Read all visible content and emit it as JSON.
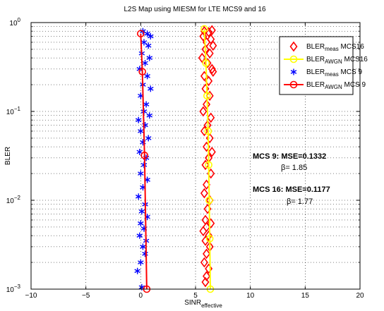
{
  "chart_data": {
    "type": "line",
    "title": "L2S Map using MIESM for LTE MCS9 and 16",
    "xlabel": {
      "main": "SINR",
      "sub": "effective"
    },
    "ylabel": "BLER",
    "xlim": [
      -10,
      20
    ],
    "ylim": [
      0.001,
      1
    ],
    "yscale": "log",
    "grid": true,
    "x_ticks": [
      "−10",
      "−5",
      "0",
      "5",
      "10",
      "15",
      "20"
    ],
    "y_ticks": [
      {
        "base": "10",
        "exp": "−3"
      },
      {
        "base": "10",
        "exp": "−2"
      },
      {
        "base": "10",
        "exp": "−1"
      },
      {
        "base": "10",
        "exp": "0"
      }
    ],
    "legend_position": "top-right",
    "series": [
      {
        "name_main": "BLER",
        "name_sub": "meas",
        "name_tail": " MCS16",
        "color": "#ff0000",
        "marker": "diamond",
        "line": false,
        "points": [
          [
            5.8,
            0.8
          ],
          [
            6.2,
            0.78
          ],
          [
            6.5,
            0.82
          ],
          [
            5.7,
            0.7
          ],
          [
            6.0,
            0.6
          ],
          [
            6.4,
            0.65
          ],
          [
            5.9,
            0.5
          ],
          [
            6.3,
            0.45
          ],
          [
            6.6,
            0.55
          ],
          [
            5.6,
            0.4
          ],
          [
            6.1,
            0.35
          ],
          [
            6.5,
            0.3
          ],
          [
            5.8,
            0.25
          ],
          [
            6.2,
            0.22
          ],
          [
            6.6,
            0.28
          ],
          [
            5.9,
            0.18
          ],
          [
            6.3,
            0.15
          ],
          [
            6.0,
            0.12
          ],
          [
            5.7,
            0.1
          ],
          [
            6.4,
            0.085
          ],
          [
            6.1,
            0.07
          ],
          [
            5.8,
            0.06
          ],
          [
            6.3,
            0.05
          ],
          [
            6.0,
            0.04
          ],
          [
            6.5,
            0.035
          ],
          [
            6.2,
            0.03
          ],
          [
            5.9,
            0.025
          ],
          [
            6.4,
            0.02
          ],
          [
            6.0,
            0.015
          ],
          [
            5.8,
            0.012
          ],
          [
            6.3,
            0.01
          ],
          [
            6.1,
            0.008
          ],
          [
            5.9,
            0.006
          ],
          [
            6.4,
            0.0055
          ],
          [
            6.0,
            0.005
          ],
          [
            5.7,
            0.0045
          ],
          [
            6.2,
            0.004
          ],
          [
            5.9,
            0.0035
          ],
          [
            6.3,
            0.003
          ],
          [
            6.0,
            0.0025
          ],
          [
            5.8,
            0.002
          ],
          [
            6.2,
            0.0017
          ],
          [
            6.0,
            0.0014
          ],
          [
            5.9,
            0.0012
          ]
        ]
      },
      {
        "name_main": "BLER",
        "name_sub": "AWGN",
        "name_tail": " MCS16",
        "color": "#ffff00",
        "marker": "circle",
        "line": true,
        "points": [
          [
            5.8,
            0.85
          ],
          [
            5.95,
            0.35
          ],
          [
            6.05,
            0.15
          ],
          [
            6.15,
            0.06
          ],
          [
            6.2,
            0.025
          ],
          [
            6.25,
            0.01
          ],
          [
            6.3,
            0.0037
          ],
          [
            6.35,
            0.001
          ]
        ]
      },
      {
        "name_main": "BLER",
        "name_sub": "meas",
        "name_tail": " MCS 9",
        "color": "#0000ff",
        "marker": "asterisk",
        "line": false,
        "points": [
          [
            0.2,
            0.8
          ],
          [
            0.6,
            0.75
          ],
          [
            0.9,
            0.7
          ],
          [
            0.3,
            0.6
          ],
          [
            0.7,
            0.55
          ],
          [
            0.1,
            0.45
          ],
          [
            0.8,
            0.4
          ],
          [
            0.4,
            0.35
          ],
          [
            -0.1,
            0.3
          ],
          [
            0.6,
            0.25
          ],
          [
            0.2,
            0.2
          ],
          [
            0.9,
            0.18
          ],
          [
            0.0,
            0.15
          ],
          [
            0.5,
            0.12
          ],
          [
            0.3,
            0.1
          ],
          [
            0.8,
            0.09
          ],
          [
            -0.2,
            0.08
          ],
          [
            0.4,
            0.07
          ],
          [
            0.0,
            0.06
          ],
          [
            0.7,
            0.05
          ],
          [
            0.2,
            0.045
          ],
          [
            -0.1,
            0.035
          ],
          [
            0.5,
            0.03
          ],
          [
            0.3,
            0.025
          ],
          [
            0.0,
            0.02
          ],
          [
            0.6,
            0.017
          ],
          [
            0.2,
            0.014
          ],
          [
            -0.2,
            0.011
          ],
          [
            0.4,
            0.009
          ],
          [
            0.1,
            0.0075
          ],
          [
            0.6,
            0.0065
          ],
          [
            0.0,
            0.0055
          ],
          [
            0.3,
            0.0048
          ],
          [
            -0.1,
            0.004
          ],
          [
            0.5,
            0.0035
          ],
          [
            0.2,
            0.003
          ],
          [
            0.4,
            0.0025
          ],
          [
            0.0,
            0.002
          ],
          [
            -0.3,
            0.0016
          ],
          [
            0.1,
            0.00105
          ]
        ]
      },
      {
        "name_main": "BLER",
        "name_sub": "AWGN",
        "name_tail": " MCS 9",
        "color": "#ff0000",
        "marker": "circle",
        "line": true,
        "points": [
          [
            0.0,
            0.75
          ],
          [
            0.15,
            0.28
          ],
          [
            0.35,
            0.032
          ],
          [
            0.55,
            0.001
          ]
        ]
      }
    ],
    "annotations": [
      {
        "lines": [
          "MCS 9: MSE=0.1332",
          "β=  1.85"
        ]
      },
      {
        "lines": [
          "MCS 16: MSE=0.1177",
          "β= 1.77"
        ]
      }
    ]
  }
}
